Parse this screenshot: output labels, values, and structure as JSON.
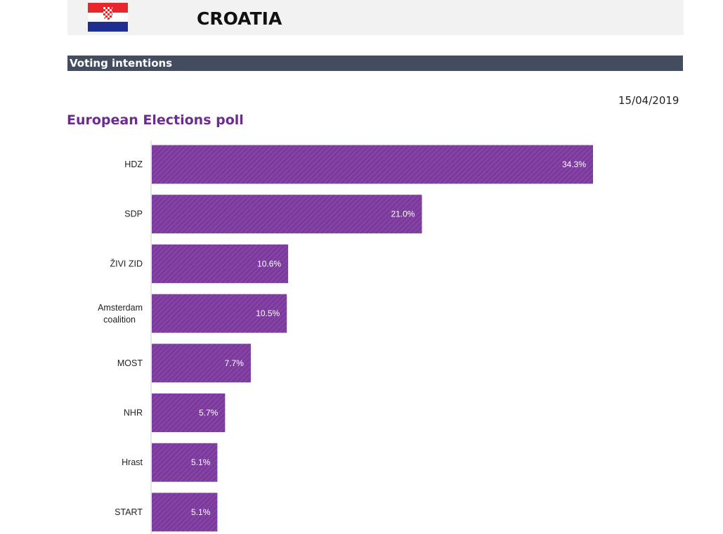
{
  "header": {
    "country": "CROATIA",
    "flag_icon": "croatia-flag-icon"
  },
  "section": {
    "title": "Voting intentions"
  },
  "date": "15/04/2019",
  "chart_data": {
    "type": "bar",
    "orientation": "horizontal",
    "title": "European Elections poll",
    "categories": [
      "HDZ",
      "SDP",
      "ŽIVI ZID",
      "Amsterdam coalition",
      "MOST",
      "NHR",
      "Hrast",
      "START"
    ],
    "values": [
      34.3,
      21.0,
      10.6,
      10.5,
      7.7,
      5.7,
      5.1,
      5.1
    ],
    "data_labels": [
      "34.3%",
      "21.0%",
      "10.6%",
      "10.5%",
      "7.7%",
      "5.7%",
      "5.1%",
      "5.1%"
    ],
    "unit": "%",
    "bar_color": "#7b3a9c",
    "grid": false,
    "legend": "none"
  }
}
